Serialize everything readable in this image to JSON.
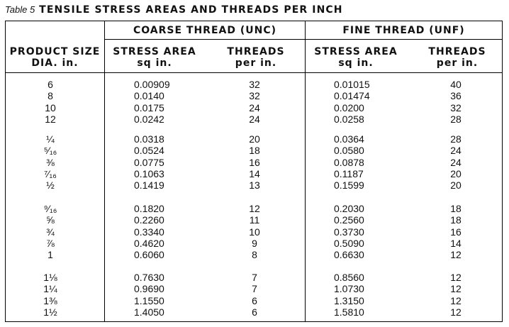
{
  "table_number": "Table 5",
  "title": "TENSILE STRESS AREAS AND THREADS PER INCH",
  "headers": {
    "product_size": [
      "PRODUCT SIZE",
      "DIA. in."
    ],
    "coarse_group": "COARSE THREAD (UNC)",
    "fine_group": "FINE THREAD (UNF)",
    "stress_area": [
      "STRESS AREA",
      "sq in."
    ],
    "threads": [
      "THREADS",
      "per in."
    ]
  },
  "groups": [
    {
      "sizes": [
        "6",
        "8",
        "10",
        "12"
      ],
      "unc_area": [
        "0.00909",
        "0.0140",
        "0.0175",
        "0.0242"
      ],
      "unc_tpi": [
        "32",
        "32",
        "24",
        "24"
      ],
      "unf_area": [
        "0.01015",
        "0.01474",
        "0.0200",
        "0.0258"
      ],
      "unf_tpi": [
        "40",
        "36",
        "32",
        "28"
      ]
    },
    {
      "sizes": [
        "¼",
        "⁵⁄₁₆",
        "⅜",
        "⁷⁄₁₆",
        "½"
      ],
      "unc_area": [
        "0.0318",
        "0.0524",
        "0.0775",
        "0.1063",
        "0.1419"
      ],
      "unc_tpi": [
        "20",
        "18",
        "16",
        "14",
        "13"
      ],
      "unf_area": [
        "0.0364",
        "0.0580",
        "0.0878",
        "0.1187",
        "0.1599"
      ],
      "unf_tpi": [
        "28",
        "24",
        "24",
        "20",
        "20"
      ]
    },
    {
      "sizes": [
        "⁹⁄₁₆",
        "⅝",
        "¾",
        "⅞",
        "1"
      ],
      "unc_area": [
        "0.1820",
        "0.2260",
        "0.3340",
        "0.4620",
        "0.6060"
      ],
      "unc_tpi": [
        "12",
        "11",
        "10",
        "9",
        "8"
      ],
      "unf_area": [
        "0.2030",
        "0.2560",
        "0.3730",
        "0.5090",
        "0.6630"
      ],
      "unf_tpi": [
        "18",
        "18",
        "16",
        "14",
        "12"
      ]
    },
    {
      "sizes": [
        "1⅛",
        "1¼",
        "1⅜",
        "1½"
      ],
      "unc_area": [
        "0.7630",
        "0.9690",
        "1.1550",
        "1.4050"
      ],
      "unc_tpi": [
        "7",
        "7",
        "6",
        "6"
      ],
      "unf_area": [
        "0.8560",
        "1.0730",
        "1.3150",
        "1.5810"
      ],
      "unf_tpi": [
        "12",
        "12",
        "12",
        "12"
      ]
    }
  ]
}
